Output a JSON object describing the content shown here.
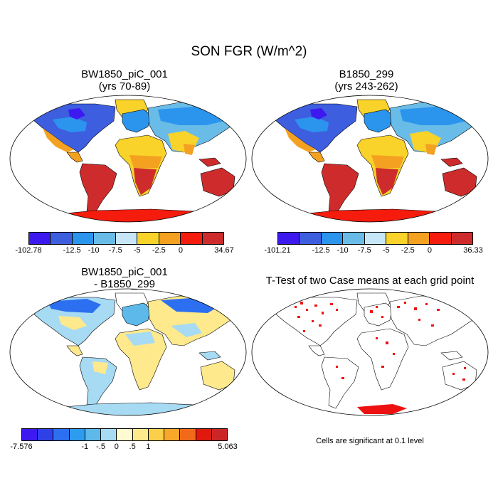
{
  "title": "SON FGR (W/m^2)",
  "panels": {
    "p1": {
      "line1": "BW1850_piC_001",
      "line2": "(yrs 70-89)"
    },
    "p2": {
      "line1": "B1850_299",
      "line2": "(yrs 243-262)"
    },
    "p3": {
      "line1": "BW1850_piC_001",
      "line2": "- B1850_299"
    },
    "p4": {
      "line1": "T-Test of two Case means at each grid point"
    }
  },
  "colorbars": {
    "cb1": {
      "colors": [
        "#3d19f0",
        "#3e5ee0",
        "#2b95ee",
        "#69bce8",
        "#c7e6f8",
        "#f9d32a",
        "#f4a121",
        "#f51c0e",
        "#ce2c2c"
      ],
      "labels": [
        "-102.78",
        "-12.5",
        "-10",
        "-7.5",
        "-5",
        "-2.5",
        "0",
        "34.67"
      ]
    },
    "cb2": {
      "colors": [
        "#3d19f0",
        "#3e5ee0",
        "#2b95ee",
        "#69bce8",
        "#c7e6f8",
        "#f9d32a",
        "#f4a121",
        "#f51c0e",
        "#ce2c2c"
      ],
      "labels": [
        "-101.21",
        "-12.5",
        "-10",
        "-7.5",
        "-5",
        "-2.5",
        "0",
        "36.33"
      ]
    },
    "cb3": {
      "colors": [
        "#3d19f0",
        "#3040e8",
        "#2c6ff0",
        "#2d9cee",
        "#5cb9ea",
        "#a7daf3",
        "#fffbd0",
        "#fee98c",
        "#fbcf4a",
        "#f7a72a",
        "#f06a1a",
        "#e0180d",
        "#cb2626"
      ],
      "labels": [
        "-7.576",
        "-1",
        "-.5",
        "0",
        ".5",
        "1",
        "5.063"
      ]
    }
  },
  "note": "Cells are significant at 0.1 level"
}
